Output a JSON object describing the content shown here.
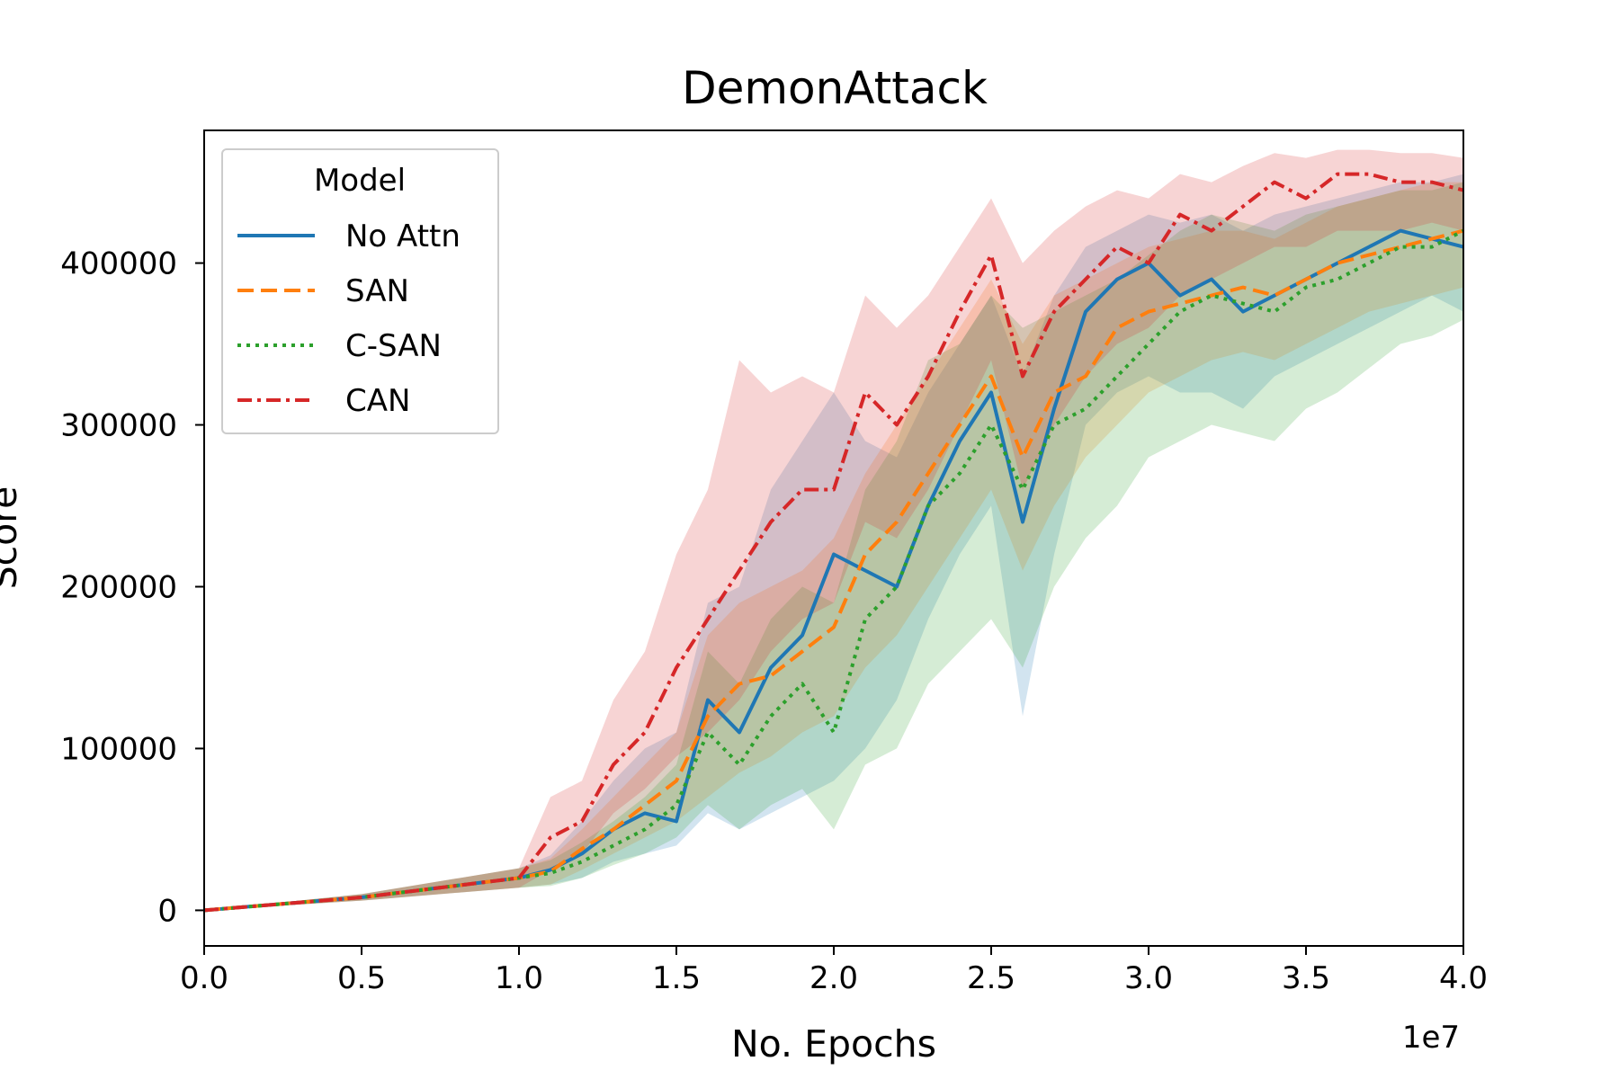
{
  "chart_data": {
    "type": "line",
    "title": "DemonAttack",
    "xlabel": "No. Epochs",
    "ylabel": "Score",
    "x_offset_label": "1e7",
    "xlim": [
      0,
      4.0
    ],
    "ylim": [
      -22000,
      482000
    ],
    "x_ticks": [
      "0.0",
      "0.5",
      "1.0",
      "1.5",
      "2.0",
      "2.5",
      "3.0",
      "3.5",
      "4.0"
    ],
    "y_ticks": [
      "0",
      "100000",
      "200000",
      "300000",
      "400000"
    ],
    "legend": {
      "title": "Model",
      "placement": "upper-left"
    },
    "grid": false,
    "x": [
      0.0,
      0.5,
      1.0,
      1.1,
      1.2,
      1.3,
      1.4,
      1.5,
      1.6,
      1.7,
      1.8,
      1.9,
      2.0,
      2.1,
      2.2,
      2.3,
      2.4,
      2.5,
      2.6,
      2.7,
      2.8,
      2.9,
      3.0,
      3.1,
      3.2,
      3.3,
      3.4,
      3.5,
      3.6,
      3.7,
      3.8,
      3.9,
      4.0
    ],
    "series": [
      {
        "name": "No Attn",
        "color": "#1f77b4",
        "dash": "solid",
        "values": [
          0,
          8000,
          20000,
          25000,
          35000,
          50000,
          60000,
          55000,
          130000,
          110000,
          150000,
          170000,
          220000,
          210000,
          200000,
          250000,
          290000,
          320000,
          240000,
          310000,
          370000,
          390000,
          400000,
          380000,
          390000,
          370000,
          380000,
          390000,
          400000,
          410000,
          420000,
          415000,
          410000
        ],
        "lower": [
          0,
          6000,
          14000,
          16000,
          20000,
          30000,
          35000,
          40000,
          60000,
          50000,
          60000,
          70000,
          80000,
          100000,
          130000,
          180000,
          220000,
          250000,
          120000,
          220000,
          300000,
          320000,
          330000,
          320000,
          320000,
          310000,
          330000,
          340000,
          350000,
          360000,
          370000,
          380000,
          370000
        ],
        "upper": [
          0,
          10000,
          26000,
          34000,
          55000,
          80000,
          100000,
          110000,
          190000,
          200000,
          260000,
          290000,
          320000,
          290000,
          280000,
          320000,
          350000,
          380000,
          330000,
          380000,
          410000,
          420000,
          430000,
          425000,
          430000,
          420000,
          430000,
          435000,
          440000,
          445000,
          450000,
          450000,
          455000
        ]
      },
      {
        "name": "SAN",
        "color": "#ff7f0e",
        "dash": "dashed",
        "values": [
          0,
          8000,
          20000,
          24000,
          38000,
          50000,
          65000,
          80000,
          120000,
          140000,
          145000,
          160000,
          175000,
          220000,
          240000,
          270000,
          300000,
          330000,
          280000,
          320000,
          330000,
          360000,
          370000,
          375000,
          380000,
          385000,
          380000,
          390000,
          400000,
          405000,
          410000,
          415000,
          420000
        ],
        "lower": [
          0,
          6000,
          14000,
          16000,
          25000,
          35000,
          45000,
          55000,
          70000,
          85000,
          95000,
          110000,
          120000,
          150000,
          170000,
          200000,
          230000,
          260000,
          210000,
          250000,
          280000,
          300000,
          320000,
          330000,
          340000,
          345000,
          340000,
          350000,
          360000,
          370000,
          375000,
          380000,
          385000
        ],
        "upper": [
          0,
          10000,
          26000,
          32000,
          50000,
          70000,
          90000,
          110000,
          170000,
          190000,
          200000,
          210000,
          230000,
          270000,
          300000,
          330000,
          360000,
          390000,
          350000,
          380000,
          390000,
          400000,
          410000,
          415000,
          420000,
          420000,
          415000,
          425000,
          435000,
          440000,
          445000,
          450000,
          450000
        ]
      },
      {
        "name": "C-SAN",
        "color": "#2ca02c",
        "dash": "dotted",
        "values": [
          0,
          8000,
          20000,
          23000,
          30000,
          40000,
          50000,
          65000,
          110000,
          90000,
          120000,
          140000,
          110000,
          180000,
          200000,
          250000,
          270000,
          300000,
          260000,
          300000,
          310000,
          330000,
          350000,
          370000,
          380000,
          375000,
          370000,
          385000,
          390000,
          400000,
          410000,
          410000,
          420000
        ],
        "lower": [
          0,
          6000,
          14000,
          15000,
          20000,
          28000,
          35000,
          45000,
          65000,
          50000,
          65000,
          75000,
          50000,
          90000,
          100000,
          140000,
          160000,
          180000,
          150000,
          200000,
          230000,
          250000,
          280000,
          290000,
          300000,
          295000,
          290000,
          310000,
          320000,
          335000,
          350000,
          355000,
          365000
        ],
        "upper": [
          0,
          10000,
          26000,
          31000,
          42000,
          55000,
          70000,
          90000,
          160000,
          140000,
          180000,
          200000,
          190000,
          260000,
          290000,
          340000,
          350000,
          380000,
          360000,
          370000,
          380000,
          390000,
          405000,
          420000,
          430000,
          425000,
          420000,
          430000,
          435000,
          440000,
          445000,
          445000,
          450000
        ]
      },
      {
        "name": "CAN",
        "color": "#d62728",
        "dash": "dashdot",
        "values": [
          0,
          8000,
          20000,
          45000,
          55000,
          90000,
          110000,
          150000,
          180000,
          210000,
          240000,
          260000,
          260000,
          320000,
          300000,
          330000,
          370000,
          405000,
          330000,
          370000,
          390000,
          410000,
          400000,
          430000,
          420000,
          435000,
          450000,
          440000,
          455000,
          455000,
          450000,
          450000,
          445000
        ],
        "lower": [
          0,
          6000,
          14000,
          25000,
          35000,
          60000,
          75000,
          95000,
          110000,
          130000,
          160000,
          180000,
          190000,
          240000,
          230000,
          260000,
          300000,
          340000,
          260000,
          300000,
          330000,
          350000,
          360000,
          380000,
          390000,
          400000,
          410000,
          410000,
          420000,
          420000,
          420000,
          425000,
          420000
        ],
        "upper": [
          0,
          10000,
          26000,
          70000,
          80000,
          130000,
          160000,
          220000,
          260000,
          340000,
          320000,
          330000,
          320000,
          380000,
          360000,
          380000,
          410000,
          440000,
          400000,
          420000,
          435000,
          445000,
          440000,
          455000,
          450000,
          460000,
          468000,
          465000,
          470000,
          470000,
          468000,
          468000,
          465000
        ]
      }
    ]
  }
}
